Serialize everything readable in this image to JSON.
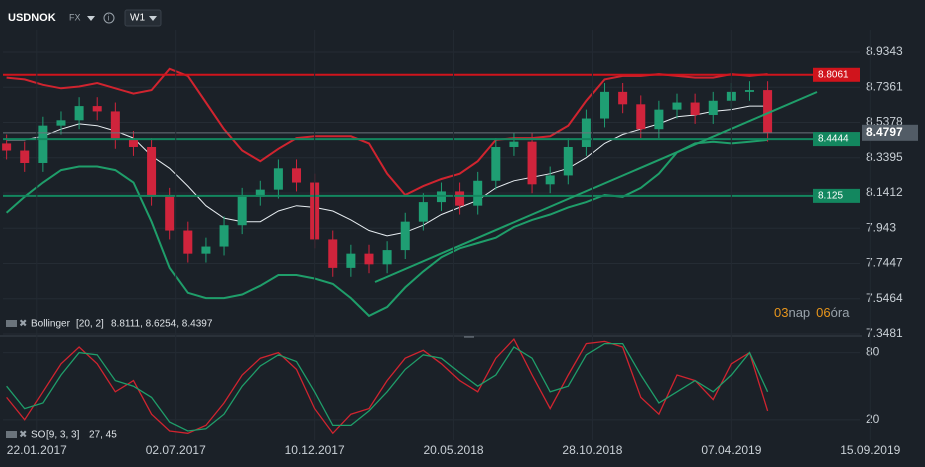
{
  "header": {
    "symbol": "USDNOK",
    "market": "FX",
    "timeframe": "W1"
  },
  "countdown": {
    "days": "03",
    "days_unit": "nap",
    "hours": "06",
    "hours_unit": "óra"
  },
  "chart_data": [
    {
      "type": "candlestick",
      "x": [
        -5,
        -2,
        1,
        4,
        7,
        10,
        13,
        16,
        19,
        22,
        25,
        28,
        31,
        34,
        37,
        40,
        43,
        46,
        49,
        52,
        55,
        58,
        61,
        64,
        67,
        70,
        73,
        76,
        79,
        82,
        85,
        88,
        91,
        94,
        97,
        100,
        103,
        106,
        109,
        112,
        115,
        118,
        121
      ],
      "open": [
        8.42,
        8.38,
        8.31,
        8.52,
        8.55,
        8.63,
        8.6,
        8.44,
        8.4,
        8.12,
        7.93,
        7.8,
        7.84,
        7.96,
        8.12,
        8.16,
        8.28,
        8.2,
        7.88,
        7.72,
        7.8,
        7.74,
        7.82,
        7.98,
        8.09,
        8.15,
        8.07,
        8.21,
        8.4,
        8.43,
        8.19,
        8.24,
        8.4,
        8.56,
        8.71,
        8.64,
        8.5,
        8.61,
        8.65,
        8.58,
        8.66,
        8.71,
        8.72
      ],
      "high": [
        8.47,
        8.43,
        8.57,
        8.6,
        8.68,
        8.68,
        8.65,
        8.49,
        8.45,
        8.17,
        7.98,
        7.89,
        8.01,
        8.17,
        8.21,
        8.33,
        8.33,
        8.25,
        7.93,
        7.85,
        7.85,
        7.87,
        8.03,
        8.14,
        8.2,
        8.2,
        8.26,
        8.45,
        8.48,
        8.48,
        8.29,
        8.45,
        8.61,
        8.76,
        8.76,
        8.69,
        8.66,
        8.7,
        8.7,
        8.71,
        8.76,
        8.77,
        8.77
      ],
      "low": [
        8.33,
        8.26,
        8.26,
        8.47,
        8.5,
        8.55,
        8.39,
        8.35,
        8.07,
        7.88,
        7.75,
        7.75,
        7.79,
        7.91,
        8.07,
        8.11,
        8.15,
        7.83,
        7.67,
        7.67,
        7.69,
        7.69,
        7.77,
        7.93,
        8.04,
        8.02,
        8.02,
        8.16,
        8.35,
        8.14,
        8.14,
        8.19,
        8.35,
        8.51,
        8.59,
        8.45,
        8.45,
        8.56,
        8.53,
        8.53,
        8.61,
        8.66,
        8.43
      ],
      "close": [
        8.38,
        8.31,
        8.52,
        8.55,
        8.63,
        8.6,
        8.44,
        8.4,
        8.12,
        7.93,
        7.8,
        7.84,
        7.96,
        8.12,
        8.16,
        8.28,
        8.2,
        7.88,
        7.72,
        7.8,
        7.74,
        7.82,
        7.98,
        8.09,
        8.15,
        8.07,
        8.21,
        8.4,
        8.43,
        8.19,
        8.24,
        8.4,
        8.56,
        8.71,
        8.64,
        8.5,
        8.61,
        8.65,
        8.58,
        8.66,
        8.71,
        8.72,
        8.48
      ],
      "up_color": "#1f9e73",
      "down_color": "#d0243c",
      "xlim": [
        -5.6,
        136.3
      ],
      "ylim": [
        7.3481,
        9.058
      ],
      "yticks": [
        8.9343,
        8.7361,
        8.5378,
        8.3395,
        8.1412,
        7.943,
        7.7447,
        7.5464,
        7.3481
      ],
      "grid": true,
      "bollinger": {
        "label": "Bollinger",
        "params": "[20, 2]",
        "values_text": "8.8111, 8.6254, 8.4397",
        "upper": {
          "color": "#d0242f",
          "values": [
            8.79,
            8.78,
            8.75,
            8.73,
            8.74,
            8.76,
            8.73,
            8.7,
            8.72,
            8.84,
            8.8,
            8.65,
            8.5,
            8.38,
            8.32,
            8.39,
            8.45,
            8.46,
            8.46,
            8.46,
            8.42,
            8.25,
            8.13,
            8.18,
            8.22,
            8.25,
            8.32,
            8.44,
            8.45,
            8.45,
            8.46,
            8.52,
            8.66,
            8.78,
            8.8,
            8.8,
            8.81,
            8.8,
            8.79,
            8.79,
            8.81,
            8.8,
            8.81
          ]
        },
        "middle": {
          "color": "#e8eef2",
          "values": [
            8.44,
            8.44,
            8.46,
            8.5,
            8.53,
            8.52,
            8.49,
            8.45,
            8.35,
            8.28,
            8.18,
            8.07,
            8.0,
            7.98,
            7.98,
            8.04,
            8.07,
            8.06,
            8.04,
            7.99,
            7.93,
            7.9,
            7.92,
            7.96,
            8.02,
            8.06,
            8.1,
            8.17,
            8.21,
            8.23,
            8.25,
            8.28,
            8.34,
            8.42,
            8.47,
            8.5,
            8.53,
            8.57,
            8.58,
            8.6,
            8.61,
            8.63,
            8.63
          ]
        },
        "lower": {
          "color": "#1f9e6a",
          "values": [
            8.03,
            8.12,
            8.2,
            8.27,
            8.29,
            8.29,
            8.27,
            8.2,
            7.98,
            7.72,
            7.58,
            7.55,
            7.55,
            7.57,
            7.62,
            7.68,
            7.68,
            7.66,
            7.63,
            7.55,
            7.45,
            7.5,
            7.61,
            7.7,
            7.78,
            7.83,
            7.86,
            7.89,
            7.95,
            7.99,
            8.02,
            8.06,
            8.09,
            8.13,
            8.12,
            8.17,
            8.25,
            8.37,
            8.42,
            8.43,
            8.42,
            8.43,
            8.44
          ]
        }
      },
      "levels": [
        {
          "value": 8.8061,
          "color": "#d0141c"
        },
        {
          "value": 8.4444,
          "color": "#13875f"
        },
        {
          "value": 8.125,
          "color": "#13875f"
        }
      ],
      "last_price": 8.4797
    },
    {
      "type": "line",
      "indicator": {
        "label": "SO",
        "params": "[9, 3, 3]",
        "values_text": "27, 45"
      },
      "x": [
        -5,
        -2,
        1,
        4,
        7,
        10,
        13,
        16,
        19,
        22,
        25,
        28,
        31,
        34,
        37,
        40,
        43,
        46,
        49,
        52,
        55,
        58,
        61,
        64,
        67,
        70,
        73,
        76,
        79,
        82,
        85,
        88,
        91,
        94,
        97,
        100,
        103,
        106,
        109,
        112,
        115,
        118,
        121
      ],
      "series": [
        {
          "color": "#d0242f",
          "values": [
            40,
            20,
            45,
            70,
            85,
            70,
            45,
            55,
            25,
            10,
            8,
            15,
            35,
            60,
            75,
            80,
            65,
            30,
            8,
            25,
            30,
            55,
            75,
            82,
            70,
            55,
            45,
            75,
            92,
            60,
            30,
            60,
            88,
            90,
            85,
            40,
            25,
            60,
            55,
            38,
            70,
            80,
            28
          ]
        },
        {
          "color": "#1f9e6a",
          "values": [
            50,
            30,
            35,
            60,
            80,
            78,
            55,
            50,
            40,
            18,
            10,
            12,
            25,
            50,
            68,
            78,
            72,
            45,
            15,
            15,
            28,
            45,
            65,
            78,
            75,
            62,
            50,
            60,
            85,
            75,
            45,
            50,
            78,
            88,
            88,
            60,
            35,
            45,
            55,
            45,
            60,
            80,
            45
          ]
        }
      ],
      "xlim": [
        -5.6,
        136.3
      ],
      "xticks": [
        {
          "value": 0,
          "label": "22.01.2017"
        },
        {
          "value": 23,
          "label": "02.07.2017"
        },
        {
          "value": 46,
          "label": "10.12.2017"
        },
        {
          "value": 69,
          "label": "20.05.2018"
        },
        {
          "value": 92,
          "label": "28.10.2018"
        },
        {
          "value": 115,
          "label": "07.04.2019"
        },
        {
          "value": 138,
          "label": "15.09.2019"
        }
      ],
      "ylim": [
        2,
        93
      ],
      "yticks": [
        80,
        20
      ],
      "grid": true
    }
  ]
}
